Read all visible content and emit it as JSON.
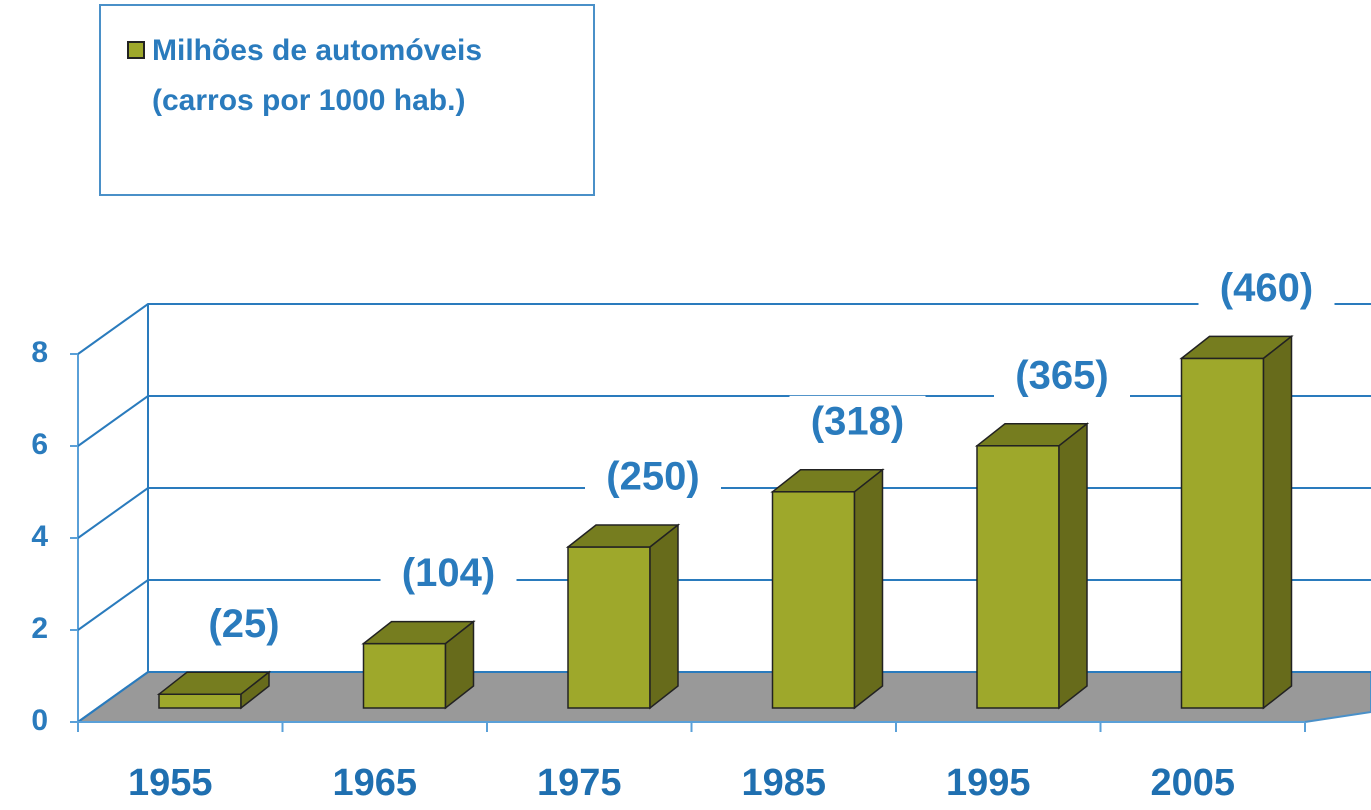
{
  "chart_data": {
    "type": "bar3d",
    "categories": [
      "1955",
      "1965",
      "1975",
      "1985",
      "1995",
      "2005"
    ],
    "series": [
      {
        "name": "Milhões de automóveis (carros por 1000 hab.)",
        "color": "#9ea82b",
        "values": [
          0.3,
          1.4,
          3.5,
          4.7,
          5.7,
          7.6
        ]
      }
    ],
    "annotations": [
      "(25)",
      "(104)",
      "(250)",
      "(318)",
      "(365)",
      "(460)"
    ],
    "ylim": [
      0,
      8
    ],
    "yticks": [
      0,
      2,
      4,
      6,
      8
    ],
    "grid": true
  }
}
